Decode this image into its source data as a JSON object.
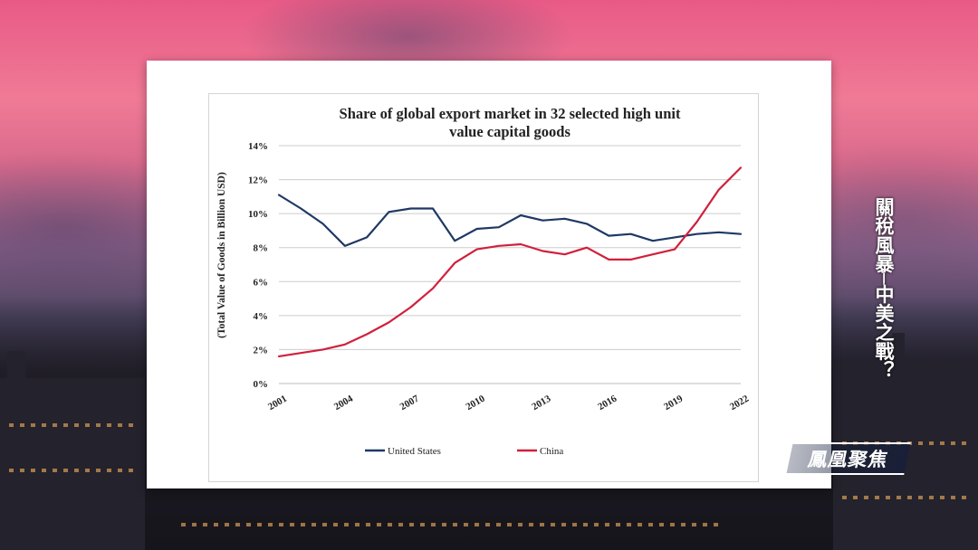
{
  "overlay": {
    "side_title": "關稅風暴─中美之戰？",
    "logo_text": "鳳凰聚焦"
  },
  "colors": {
    "united_states": "#1f3864",
    "china": "#d0203c",
    "grid": "#cccccc",
    "text": "#222222"
  },
  "chart_data": {
    "type": "line",
    "title": "Share of global export market in 32 selected high unit value capital goods",
    "title_lines": [
      "Share of global export market in 32 selected high unit",
      "value capital goods"
    ],
    "xlabel": "",
    "ylabel": "(Total Value of Goods in Billion USD)",
    "x": [
      2001,
      2002,
      2003,
      2004,
      2005,
      2006,
      2007,
      2008,
      2009,
      2010,
      2011,
      2012,
      2013,
      2014,
      2015,
      2016,
      2017,
      2018,
      2019,
      2020,
      2021,
      2022
    ],
    "x_tick_labels": [
      "2001",
      "2004",
      "2007",
      "2010",
      "2013",
      "2016",
      "2019",
      "2022"
    ],
    "y_tick_labels": [
      "0%",
      "2%",
      "4%",
      "6%",
      "8%",
      "10%",
      "12%",
      "14%"
    ],
    "ylim": [
      0,
      14
    ],
    "grid": "horizontal",
    "legend_position": "bottom",
    "series": [
      {
        "name": "United States",
        "color": "#1f3864",
        "values": [
          11.1,
          10.3,
          9.4,
          8.1,
          8.6,
          10.1,
          10.3,
          10.3,
          8.4,
          9.1,
          9.2,
          9.9,
          9.6,
          9.7,
          9.4,
          8.7,
          8.8,
          8.4,
          8.6,
          8.8,
          8.9,
          8.8
        ]
      },
      {
        "name": "China",
        "color": "#d0203c",
        "values": [
          1.6,
          1.8,
          2.0,
          2.3,
          2.9,
          3.6,
          4.5,
          5.6,
          7.1,
          7.9,
          8.1,
          8.2,
          7.8,
          7.6,
          8.0,
          7.3,
          7.3,
          7.6,
          7.9,
          9.5,
          11.4,
          12.7
        ]
      }
    ]
  }
}
